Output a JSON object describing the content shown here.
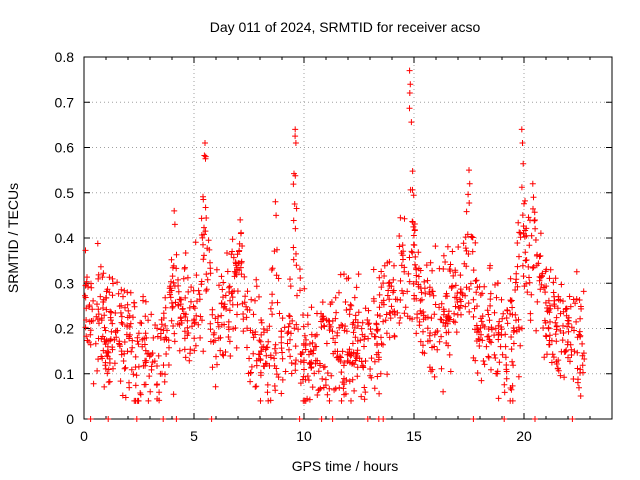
{
  "chart_data": {
    "type": "scatter",
    "title": "Day 011 of 2024, SRMTID for receiver acso",
    "xlabel": "GPS time / hours",
    "ylabel": "SRMTID / TECUs",
    "xlim": [
      0,
      24
    ],
    "ylim": [
      0,
      0.8
    ],
    "xticks": [
      0,
      5,
      10,
      15,
      20
    ],
    "xtick_labels": [
      "0",
      "5",
      "10",
      "15",
      "20"
    ],
    "yticks": [
      0,
      0.1,
      0.2,
      0.3,
      0.4,
      0.5,
      0.6,
      0.7,
      0.8
    ],
    "ytick_labels": [
      "0",
      "0.1",
      "0.2",
      "0.3",
      "0.4",
      "0.5",
      "0.6",
      "0.7",
      "0.8"
    ],
    "grid": true,
    "marker": "plus",
    "color": "#ff0000",
    "data_end_hours": 22.75,
    "envelope": [
      [
        0.0,
        0.27
      ],
      [
        0.5,
        0.24
      ],
      [
        1.0,
        0.2
      ],
      [
        1.5,
        0.18
      ],
      [
        2.0,
        0.17
      ],
      [
        2.5,
        0.14
      ],
      [
        3.0,
        0.13
      ],
      [
        3.5,
        0.16
      ],
      [
        4.0,
        0.19
      ],
      [
        4.5,
        0.21
      ],
      [
        5.0,
        0.24
      ],
      [
        5.5,
        0.28
      ],
      [
        6.0,
        0.18
      ],
      [
        6.5,
        0.25
      ],
      [
        7.0,
        0.28
      ],
      [
        7.5,
        0.18
      ],
      [
        8.0,
        0.15
      ],
      [
        8.5,
        0.16
      ],
      [
        9.0,
        0.12
      ],
      [
        9.5,
        0.21
      ],
      [
        10.0,
        0.13
      ],
      [
        10.5,
        0.14
      ],
      [
        11.0,
        0.15
      ],
      [
        11.5,
        0.17
      ],
      [
        12.0,
        0.18
      ],
      [
        12.5,
        0.17
      ],
      [
        13.0,
        0.15
      ],
      [
        13.5,
        0.21
      ],
      [
        14.0,
        0.27
      ],
      [
        14.5,
        0.31
      ],
      [
        15.0,
        0.29
      ],
      [
        15.5,
        0.22
      ],
      [
        16.0,
        0.21
      ],
      [
        16.5,
        0.25
      ],
      [
        17.0,
        0.24
      ],
      [
        17.5,
        0.3
      ],
      [
        18.0,
        0.24
      ],
      [
        18.5,
        0.21
      ],
      [
        19.0,
        0.19
      ],
      [
        19.5,
        0.17
      ],
      [
        20.0,
        0.28
      ],
      [
        20.5,
        0.33
      ],
      [
        21.0,
        0.23
      ],
      [
        21.5,
        0.21
      ],
      [
        22.0,
        0.18
      ],
      [
        22.75,
        0.16
      ]
    ],
    "bursts": [
      {
        "center": 5.5,
        "peak": 0.61
      },
      {
        "center": 8.7,
        "peak": 0.48
      },
      {
        "center": 9.6,
        "peak": 0.64
      },
      {
        "center": 14.8,
        "peak": 0.77
      },
      {
        "center": 17.5,
        "peak": 0.55
      },
      {
        "center": 19.9,
        "peak": 0.64
      },
      {
        "center": 20.4,
        "peak": 0.52
      },
      {
        "center": 4.1,
        "peak": 0.46
      },
      {
        "center": 7.1,
        "peak": 0.44
      }
    ],
    "zero_points_hours": [
      0.3,
      1.1,
      2.4,
      3.6,
      4.2,
      5.8,
      9.8,
      10.8,
      11.3,
      12.9,
      13.4,
      13.6,
      17.7,
      19.1,
      20.5,
      22.2
    ]
  }
}
